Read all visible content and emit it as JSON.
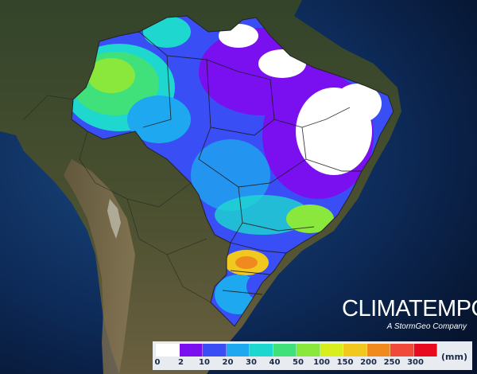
{
  "brand": {
    "name": "CLIMATEMPO",
    "tagline": "A StormGeo Company"
  },
  "legend": {
    "unit": "(mm)",
    "labels": [
      "0",
      "2",
      "10",
      "20",
      "30",
      "40",
      "50",
      "100",
      "150",
      "200",
      "250",
      "300"
    ],
    "colors": [
      "#ffffff",
      "#7a0ff0",
      "#3a4ef5",
      "#1ea8f0",
      "#1ed8d0",
      "#40e07a",
      "#8ae83c",
      "#d8ee1e",
      "#f0c81e",
      "#f08a1e",
      "#f04a3a",
      "#e80a1e"
    ]
  },
  "map": {
    "ocean_color": "#0e2a55",
    "land_color": "#3b4a2a",
    "boundary_color": "#222222"
  }
}
